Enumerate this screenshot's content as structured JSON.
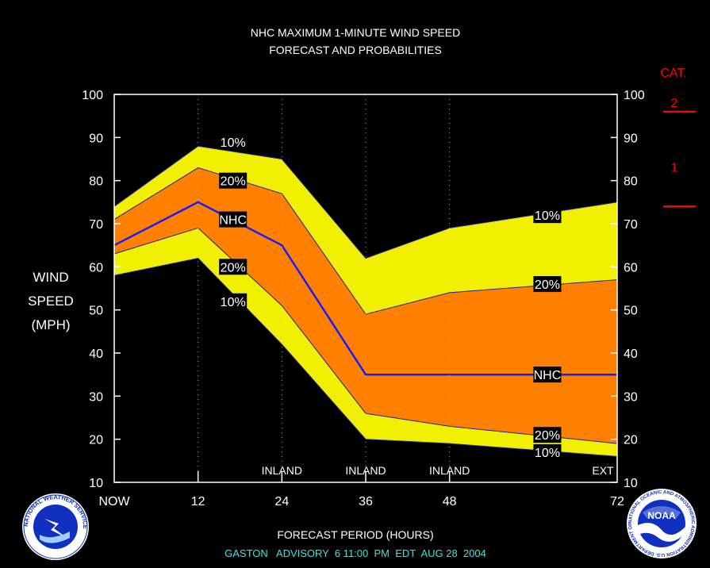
{
  "chart_data": {
    "type": "area",
    "title": "NHC MAXIMUM 1-MINUTE WIND SPEED",
    "subtitle": "FORECAST AND PROBABILITIES",
    "ylabel_lines": [
      "WIND",
      "SPEED",
      "(MPH)"
    ],
    "xlabel": "FORECAST PERIOD (HOURS)",
    "footer": "GASTON   ADVISORY  6 11:00  PM  EDT  AUG 28  2004",
    "ylim": [
      10,
      100
    ],
    "yticks": [
      "10",
      "20",
      "30",
      "40",
      "50",
      "60",
      "70",
      "80",
      "90",
      "100"
    ],
    "xticks": [
      {
        "x": 0,
        "label": "NOW"
      },
      {
        "x": 12,
        "label": "12"
      },
      {
        "x": 24,
        "label": "24"
      },
      {
        "x": 36,
        "label": "36"
      },
      {
        "x": 48,
        "label": "48"
      },
      {
        "x": 72,
        "label": "72"
      }
    ],
    "inland_labels": [
      {
        "x": 24,
        "label": "INLAND"
      },
      {
        "x": 36,
        "label": "INLAND"
      },
      {
        "x": 48,
        "label": "INLAND"
      },
      {
        "x": 72,
        "label": "EXT"
      }
    ],
    "x": [
      0,
      12,
      24,
      36,
      48,
      72
    ],
    "series": [
      {
        "name": "10%",
        "values": [
          74,
          88,
          85,
          62,
          69,
          75
        ]
      },
      {
        "name": "20%",
        "values": [
          71,
          83,
          77,
          49,
          54,
          57
        ]
      },
      {
        "name": "NHC",
        "values": [
          65,
          75,
          65,
          35,
          35,
          35
        ]
      },
      {
        "name": "20%",
        "values": [
          63,
          69,
          51,
          26,
          23,
          19
        ]
      },
      {
        "name": "10%",
        "values": [
          58,
          62,
          42,
          20,
          19,
          16
        ]
      }
    ],
    "series_labels": [
      {
        "text": "10%",
        "x": 17,
        "y": 89
      },
      {
        "text": "20%",
        "x": 17,
        "y": 80
      },
      {
        "text": "NHC",
        "x": 17,
        "y": 71
      },
      {
        "text": "20%",
        "x": 17,
        "y": 60
      },
      {
        "text": "10%",
        "x": 17,
        "y": 52
      },
      {
        "text": "10%",
        "x": 62,
        "y": 72
      },
      {
        "text": "20%",
        "x": 62,
        "y": 56
      },
      {
        "text": "NHC",
        "x": 62,
        "y": 35
      },
      {
        "text": "20%",
        "x": 62,
        "y": 21
      },
      {
        "text": "10%",
        "x": 62,
        "y": 17
      }
    ],
    "category": {
      "title": "CAT.",
      "labels": [
        {
          "text": "2",
          "y": 100
        },
        {
          "text": "1",
          "y": 85
        }
      ],
      "thresholds": [
        96,
        74
      ]
    },
    "colors": {
      "outer_band": "#f0f000",
      "inner_band": "#ff8000",
      "nhc_line": "#1a1aff",
      "category": "#ff0000",
      "footer": "#40e0e0",
      "background": "#000000"
    }
  },
  "logos": {
    "left": "NATIONAL WEATHER SERVICE",
    "right_center": "NOAA",
    "right_ring": "NATIONAL OCEANIC AND ATMOSPHERIC ADMINISTRATION U.S. DEPARTMENT OF COMMERCE"
  }
}
